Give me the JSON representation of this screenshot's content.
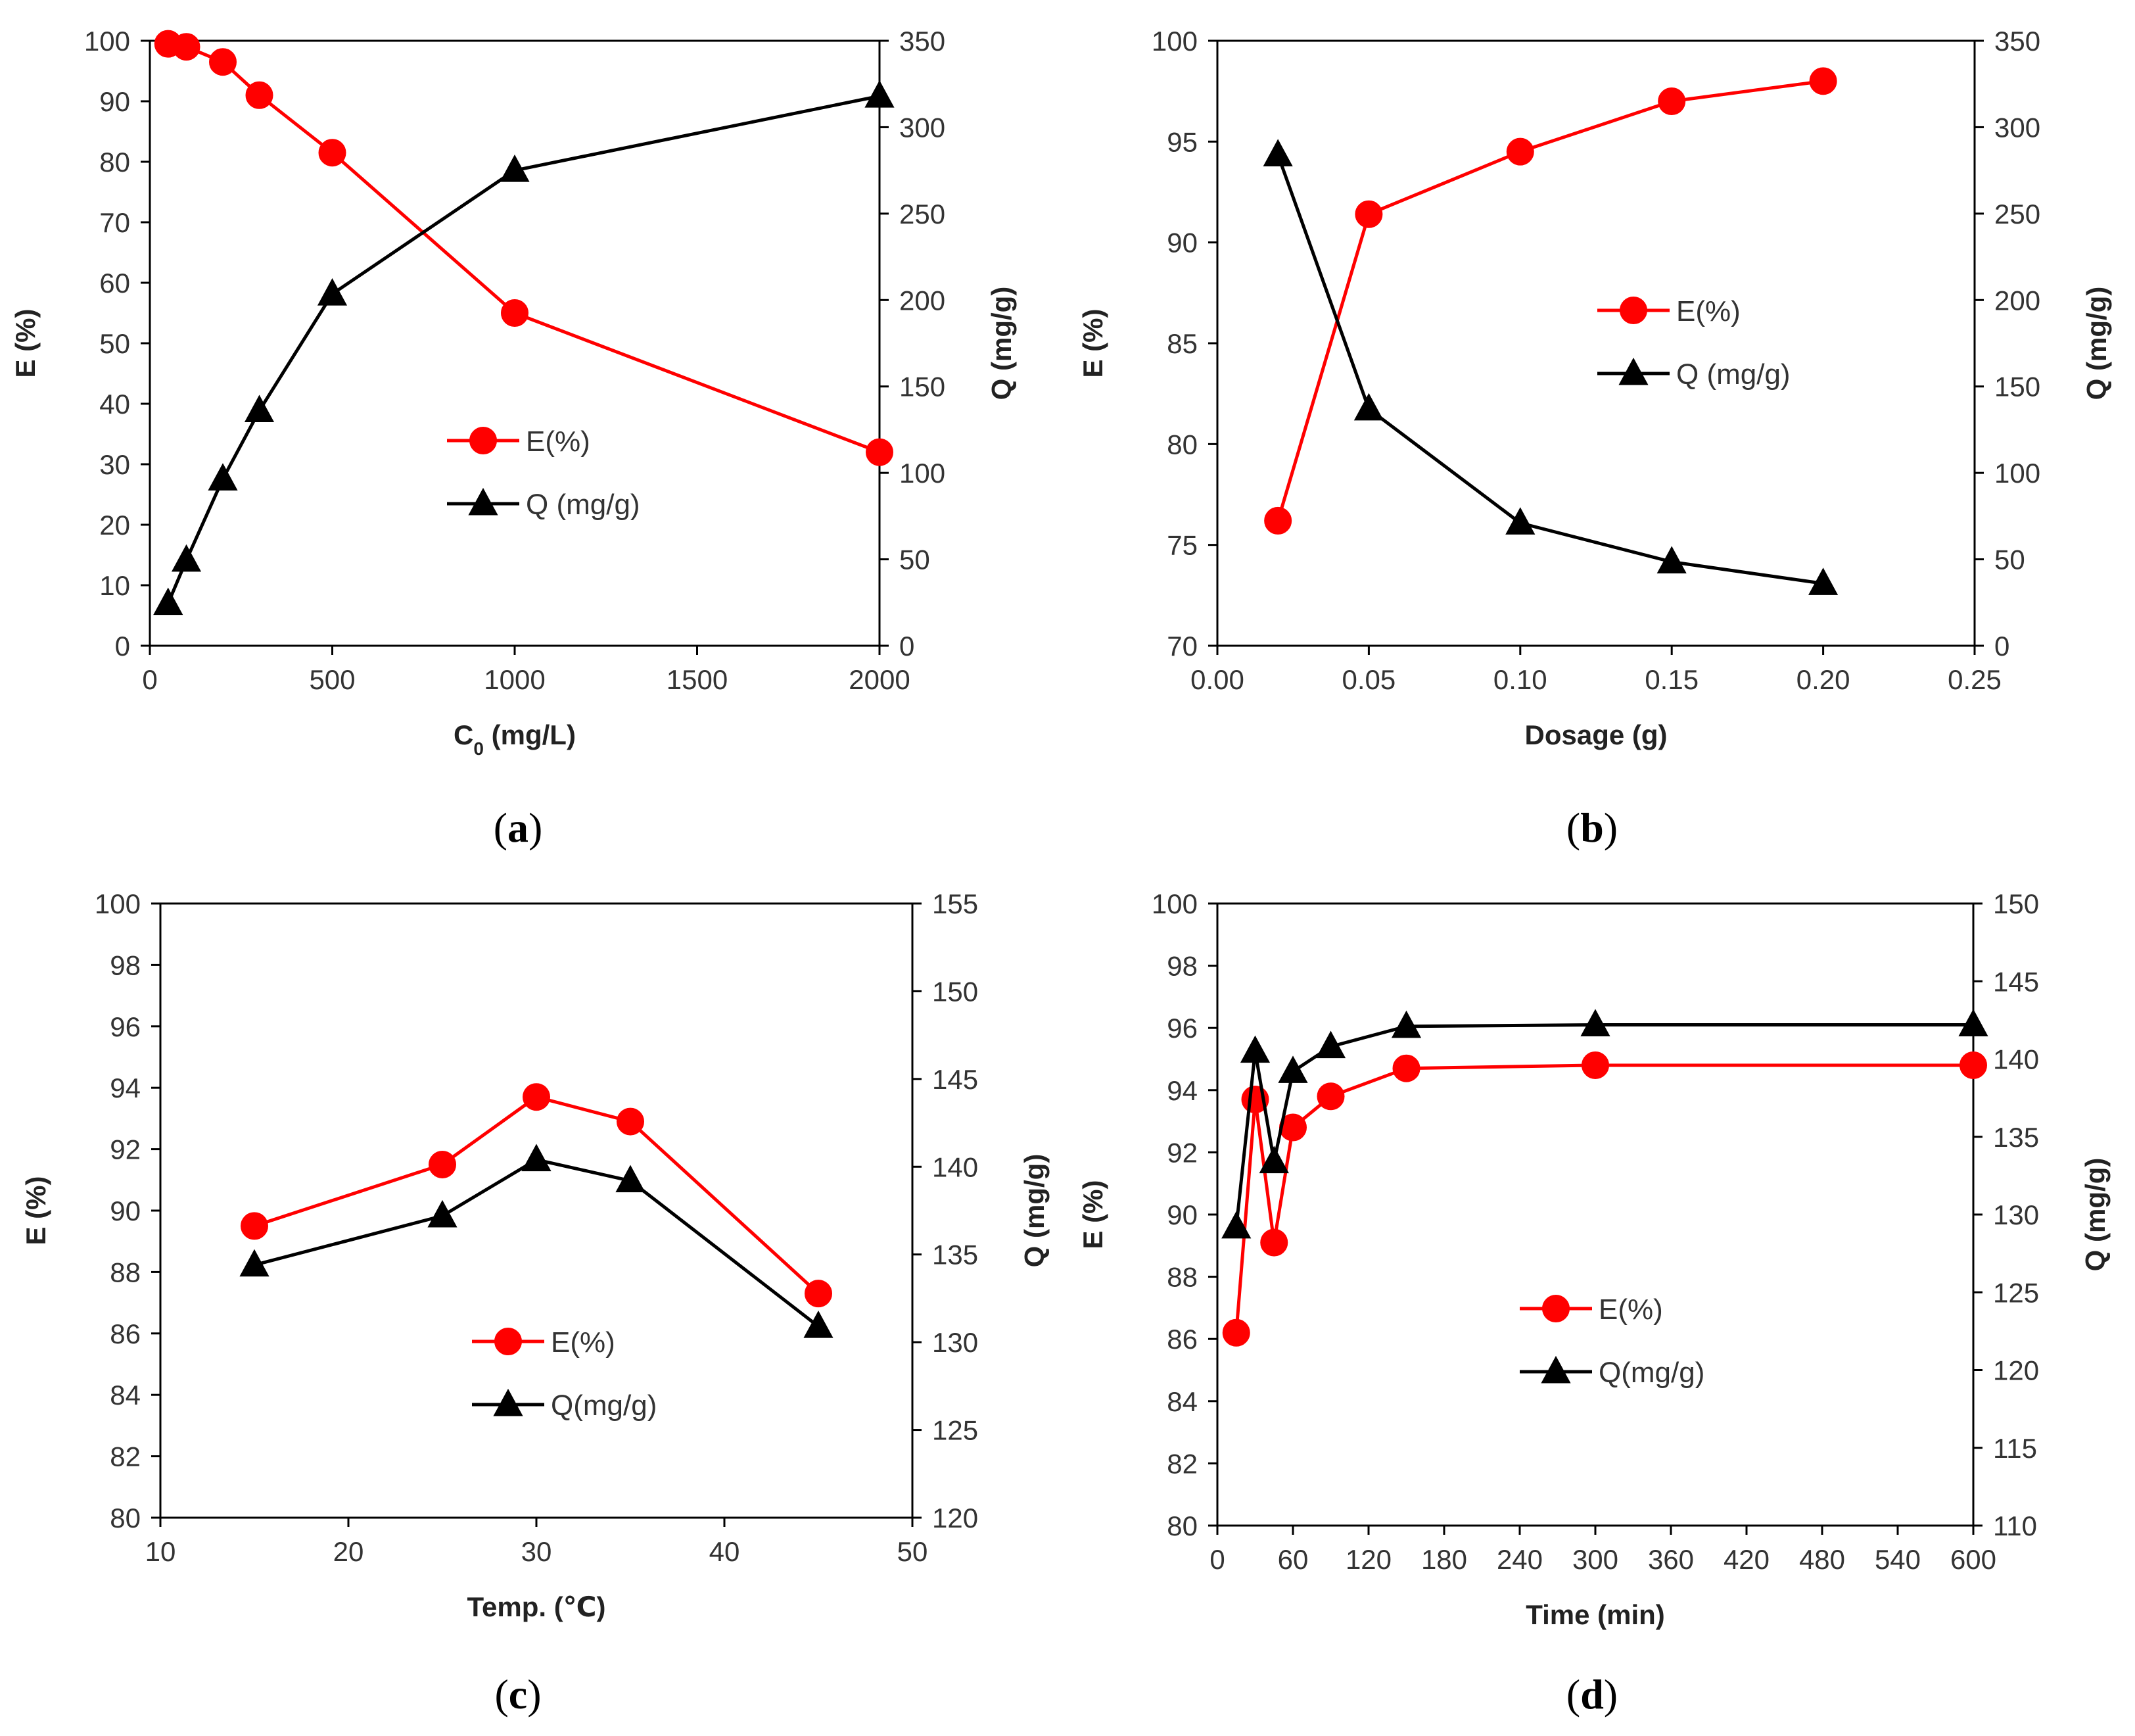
{
  "chart_data": [
    {
      "type": "line",
      "panel_label": "a",
      "xlabel": "C",
      "xlabel_sub": "0",
      "xlabel_suffix": " (mg/L)",
      "ylabel": "E (%)",
      "y2label": "Q (mg/g)",
      "xlim": [
        0,
        2000
      ],
      "xticks": [
        0,
        500,
        1000,
        1500,
        2000
      ],
      "xtick_labels": [
        "0",
        "500",
        "1000",
        "1500",
        "2000"
      ],
      "ylim": [
        0,
        100
      ],
      "yticks": [
        0,
        10,
        20,
        30,
        40,
        50,
        60,
        70,
        80,
        90,
        100
      ],
      "ytick_labels": [
        "0",
        "10",
        "20",
        "30",
        "40",
        "50",
        "60",
        "70",
        "80",
        "90",
        "100"
      ],
      "y2lim": [
        0,
        350
      ],
      "y2ticks": [
        0,
        50,
        100,
        150,
        200,
        250,
        300,
        350
      ],
      "y2tick_labels": [
        "0",
        "50",
        "100",
        "150",
        "200",
        "250",
        "300",
        "350"
      ],
      "legend": "middle",
      "series": [
        {
          "name": "E(%)",
          "axis": "left",
          "color": "#ff0000",
          "marker": "circle",
          "x": [
            50,
            100,
            200,
            300,
            500,
            1000,
            2000
          ],
          "y": [
            99.5,
            99,
            96.5,
            91,
            81.5,
            55,
            32
          ]
        },
        {
          "name": "Q (mg/g)",
          "axis": "right",
          "color": "#000000",
          "marker": "triangle",
          "x": [
            50,
            100,
            200,
            300,
            500,
            1000,
            2000
          ],
          "y": [
            24.5,
            49.5,
            96.5,
            136,
            203.5,
            275,
            318
          ]
        }
      ]
    },
    {
      "type": "line",
      "panel_label": "b",
      "xlabel": "Dosage (g)",
      "ylabel": "E (%)",
      "y2label": "Q (mg/g)",
      "xlim": [
        0,
        0.25
      ],
      "xticks": [
        0,
        0.05,
        0.1,
        0.15,
        0.2,
        0.25
      ],
      "xtick_labels": [
        "0.00",
        "0.05",
        "0.10",
        "0.15",
        "0.20",
        "0.25"
      ],
      "ylim": [
        70,
        100
      ],
      "yticks": [
        70,
        75,
        80,
        85,
        90,
        95,
        100
      ],
      "ytick_labels": [
        "70",
        "75",
        "80",
        "85",
        "90",
        "95",
        "100"
      ],
      "y2lim": [
        0,
        350
      ],
      "y2ticks": [
        0,
        50,
        100,
        150,
        200,
        250,
        300,
        350
      ],
      "y2tick_labels": [
        "0",
        "50",
        "100",
        "150",
        "200",
        "250",
        "300",
        "350"
      ],
      "legend": "upper-middle",
      "series": [
        {
          "name": "E(%)",
          "axis": "left",
          "color": "#ff0000",
          "marker": "circle",
          "x": [
            0.02,
            0.05,
            0.1,
            0.15,
            0.2
          ],
          "y": [
            76.2,
            91.4,
            94.5,
            97,
            98
          ]
        },
        {
          "name": "Q (mg/g)",
          "axis": "right",
          "color": "#000000",
          "marker": "triangle",
          "x": [
            0.02,
            0.05,
            0.1,
            0.15,
            0.2
          ],
          "y": [
            284,
            137,
            71,
            48.5,
            36
          ]
        }
      ]
    },
    {
      "type": "line",
      "panel_label": "c",
      "xlabel": "Temp. (℃)",
      "ylabel": "E (%)",
      "y2label": "Q (mg/g)",
      "xlim": [
        10,
        50
      ],
      "xticks": [
        10,
        20,
        30,
        40,
        50
      ],
      "xtick_labels": [
        "10",
        "20",
        "30",
        "40",
        "50"
      ],
      "ylim": [
        80,
        100
      ],
      "yticks": [
        80,
        82,
        84,
        86,
        88,
        90,
        92,
        94,
        96,
        98,
        100
      ],
      "ytick_labels": [
        "80",
        "82",
        "84",
        "86",
        "88",
        "90",
        "92",
        "94",
        "96",
        "98",
        "100"
      ],
      "y2lim": [
        120,
        155
      ],
      "y2ticks": [
        120,
        125,
        130,
        135,
        140,
        145,
        150,
        155
      ],
      "y2tick_labels": [
        "120",
        "125",
        "130",
        "135",
        "140",
        "145",
        "150",
        "155"
      ],
      "legend": "lower-middle",
      "series": [
        {
          "name": "E(%)",
          "axis": "left",
          "color": "#ff0000",
          "marker": "circle",
          "x": [
            15,
            25,
            30,
            35,
            45
          ],
          "y": [
            89.5,
            91.5,
            93.7,
            92.9,
            87.3
          ]
        },
        {
          "name": "Q(mg/g)",
          "axis": "right",
          "color": "#000000",
          "marker": "triangle",
          "x": [
            15,
            25,
            30,
            35,
            45
          ],
          "y": [
            134.4,
            137.2,
            140.4,
            139.2,
            130.9
          ]
        }
      ]
    },
    {
      "type": "line",
      "panel_label": "d",
      "xlabel": "Time (min)",
      "ylabel": "E (%)",
      "y2label": "Q (mg/g)",
      "xlim": [
        0,
        600
      ],
      "xticks": [
        0,
        60,
        120,
        180,
        240,
        300,
        360,
        420,
        480,
        540,
        600
      ],
      "xtick_labels": [
        "0",
        "60",
        "120",
        "180",
        "240",
        "300",
        "360",
        "420",
        "480",
        "540",
        "600"
      ],
      "ylim": [
        80,
        100
      ],
      "yticks": [
        80,
        82,
        84,
        86,
        88,
        90,
        92,
        94,
        96,
        98,
        100
      ],
      "ytick_labels": [
        "80",
        "82",
        "84",
        "86",
        "88",
        "90",
        "92",
        "94",
        "96",
        "98",
        "100"
      ],
      "y2lim": [
        110,
        150
      ],
      "y2ticks": [
        110,
        115,
        120,
        125,
        130,
        135,
        140,
        145,
        150
      ],
      "y2tick_labels": [
        "110",
        "115",
        "120",
        "125",
        "130",
        "135",
        "140",
        "145",
        "150"
      ],
      "legend": "lower-middle",
      "series": [
        {
          "name": "E(%)",
          "axis": "left",
          "color": "#ff0000",
          "marker": "circle",
          "x": [
            15,
            30,
            45,
            60,
            90,
            150,
            300,
            600
          ],
          "y": [
            86.2,
            93.7,
            89.1,
            92.8,
            93.8,
            94.7,
            94.8,
            94.8
          ]
        },
        {
          "name": "Q(mg/g)",
          "axis": "right",
          "color": "#000000",
          "marker": "triangle",
          "x": [
            15,
            30,
            45,
            60,
            90,
            150,
            300,
            600
          ],
          "y": [
            129.2,
            140.5,
            133.4,
            139.2,
            140.8,
            142.1,
            142.2,
            142.2
          ]
        }
      ]
    }
  ]
}
